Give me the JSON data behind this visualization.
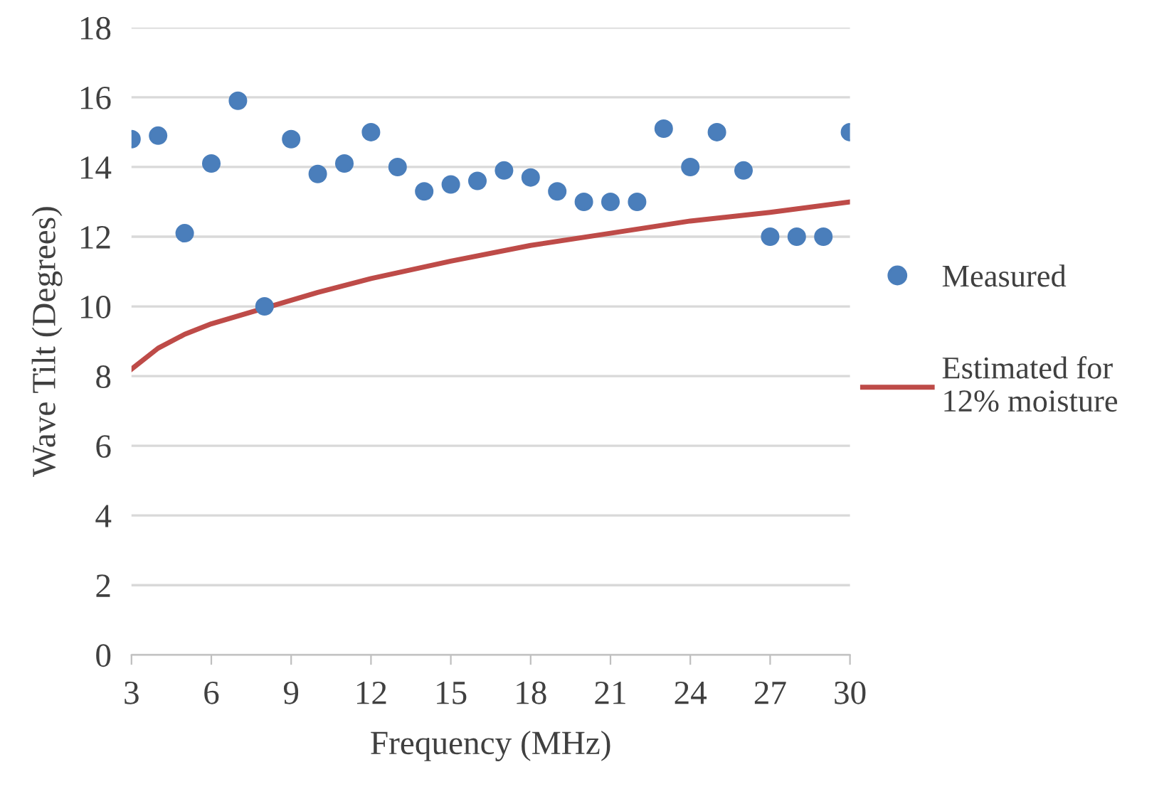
{
  "chart_data": {
    "type": "scatter",
    "xlabel": "Frequency (MHz)",
    "ylabel": "Wave Tilt (Degrees)",
    "xlim": [
      3,
      30
    ],
    "xticks": [
      3,
      6,
      9,
      12,
      15,
      18,
      21,
      24,
      27,
      30
    ],
    "ylim": [
      0,
      18
    ],
    "yticks": [
      0,
      2,
      4,
      6,
      8,
      10,
      12,
      14,
      16,
      18
    ],
    "grid": "y",
    "legend": "right",
    "series": [
      {
        "name": "Measured",
        "marker": "circle",
        "color": "#4a7ebb",
        "x": [
          3,
          4,
          5,
          6,
          7,
          8,
          9,
          10,
          11,
          12,
          13,
          14,
          15,
          16,
          17,
          18,
          19,
          20,
          21,
          22,
          23,
          24,
          25,
          26,
          27,
          28,
          29,
          30
        ],
        "values": [
          14.8,
          14.9,
          12.1,
          14.1,
          15.9,
          10.0,
          14.8,
          13.8,
          14.1,
          15.0,
          14.0,
          13.3,
          13.5,
          13.6,
          13.9,
          13.7,
          13.3,
          13.0,
          13.0,
          13.0,
          15.1,
          14.0,
          15.0,
          13.9,
          12.0,
          12.0,
          12.0,
          15.0
        ]
      },
      {
        "name": "Estimated for\n12% moisture",
        "type": "line",
        "color": "#be4b48",
        "x": [
          3,
          4,
          5,
          6,
          10,
          12,
          15,
          18,
          21,
          24,
          27,
          30
        ],
        "values": [
          8.2,
          8.8,
          9.2,
          9.5,
          10.4,
          10.8,
          11.3,
          11.75,
          12.1,
          12.45,
          12.7,
          13.0
        ]
      }
    ]
  }
}
